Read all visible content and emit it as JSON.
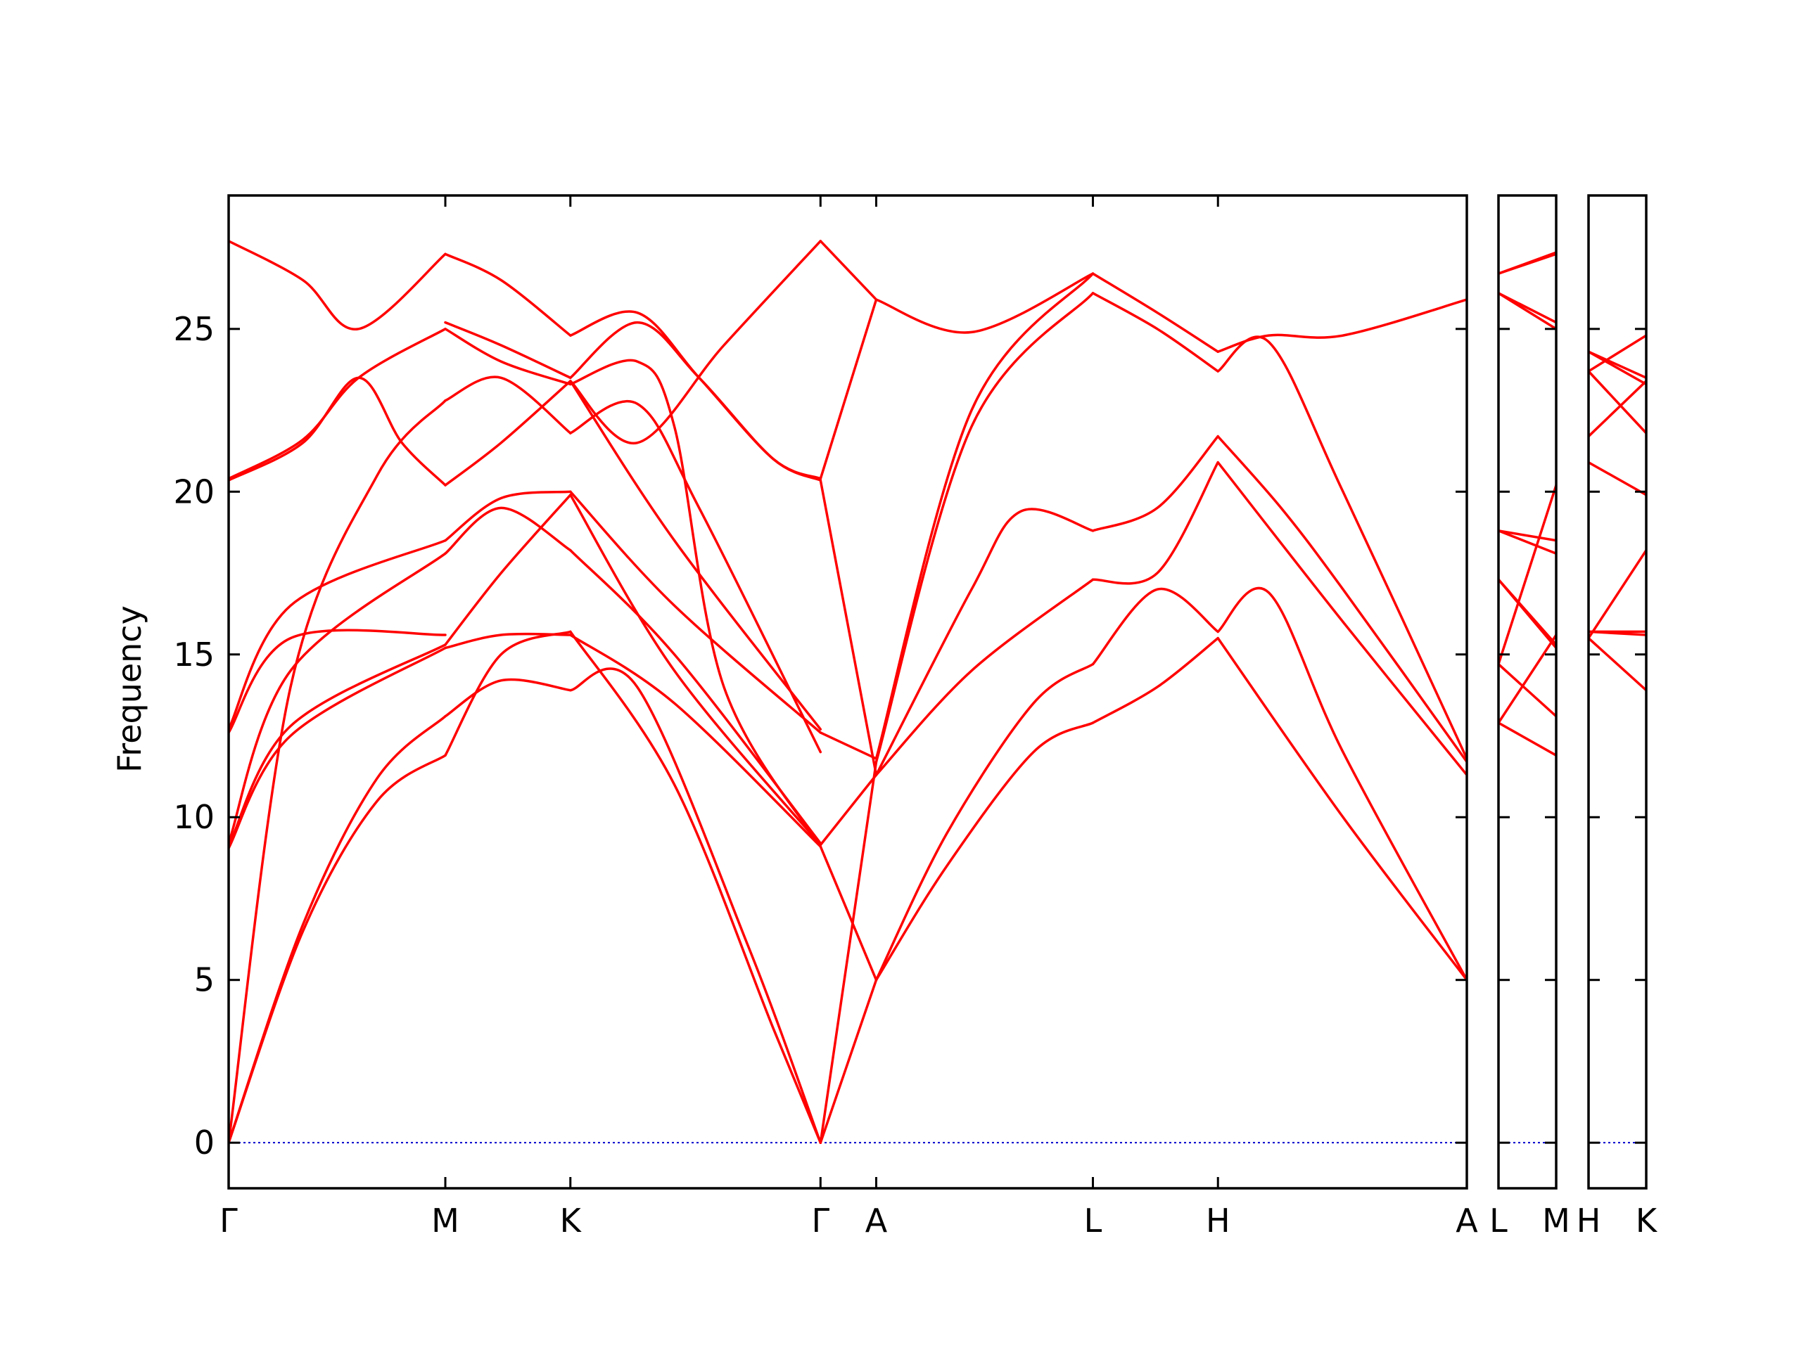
{
  "chart_data": {
    "type": "line",
    "title": "",
    "xlabel": "",
    "ylabel": "Frequency",
    "ylim": [
      -1.4,
      29.1
    ],
    "yticks": [
      0,
      5,
      10,
      15,
      20,
      25
    ],
    "grid": false,
    "legend": "none",
    "colors": {
      "band": "#ff0000",
      "zero_line": "#0000cc",
      "frame": "#000000"
    },
    "panels": [
      {
        "name": "main",
        "xlim": [
          0,
          1.0
        ],
        "ticks": [
          {
            "label": "Γ",
            "x": 0.0
          },
          {
            "label": "M",
            "x": 0.175
          },
          {
            "label": "K",
            "x": 0.276
          },
          {
            "label": "Γ",
            "x": 0.478
          },
          {
            "label": "A",
            "x": 0.523
          },
          {
            "label": "L",
            "x": 0.698
          },
          {
            "label": "H",
            "x": 0.799
          },
          {
            "label": "A",
            "x": 1.0
          }
        ],
        "bands": [
          {
            "x": [
              0,
              0.06,
              0.12,
              0.175
            ],
            "y": [
              0,
              6.5,
              10.5,
              11.9
            ]
          },
          {
            "x": [
              0,
              0.06,
              0.12,
              0.175
            ],
            "y": [
              0,
              6.7,
              11.2,
              13.1
            ]
          },
          {
            "x": [
              0,
              0.05,
              0.12,
              0.175
            ],
            "y": [
              0,
              14.0,
              20.5,
              22.8
            ]
          },
          {
            "x": [
              0,
              0.05,
              0.175
            ],
            "y": [
              9.05,
              12.5,
              15.2
            ]
          },
          {
            "x": [
              0,
              0.05,
              0.175
            ],
            "y": [
              9.1,
              12.8,
              15.3
            ]
          },
          {
            "x": [
              0,
              0.05,
              0.175
            ],
            "y": [
              9.2,
              14.5,
              18.1
            ]
          },
          {
            "x": [
              0,
              0.05,
              0.175
            ],
            "y": [
              12.6,
              15.5,
              15.6
            ]
          },
          {
            "x": [
              0,
              0.05,
              0.175
            ],
            "y": [
              12.7,
              16.5,
              18.5
            ]
          },
          {
            "x": [
              0,
              0.06,
              0.105,
              0.14,
              0.175
            ],
            "y": [
              20.35,
              21.5,
              23.5,
              21.5,
              20.2
            ]
          },
          {
            "x": [
              0,
              0.06,
              0.105,
              0.175
            ],
            "y": [
              20.4,
              21.6,
              23.5,
              25.0
            ]
          },
          {
            "x": [
              0,
              0.06,
              0.105,
              0.175
            ],
            "y": [
              27.7,
              26.5,
              25.0,
              27.3
            ]
          },
          {
            "x": [
              0.175,
              0.22,
              0.276
            ],
            "y": [
              11.9,
              15.0,
              15.7
            ]
          },
          {
            "x": [
              0.175,
              0.22,
              0.276
            ],
            "y": [
              13.1,
              14.2,
              13.9
            ]
          },
          {
            "x": [
              0.175,
              0.22,
              0.276
            ],
            "y": [
              15.2,
              15.6,
              15.6
            ]
          },
          {
            "x": [
              0.175,
              0.22,
              0.276
            ],
            "y": [
              15.3,
              17.5,
              19.9
            ]
          },
          {
            "x": [
              0.175,
              0.22,
              0.276
            ],
            "y": [
              18.1,
              19.5,
              18.2
            ]
          },
          {
            "x": [
              0.175,
              0.22,
              0.276
            ],
            "y": [
              18.5,
              19.8,
              20.0
            ]
          },
          {
            "x": [
              0.175,
              0.22,
              0.276
            ],
            "y": [
              20.2,
              21.5,
              23.4
            ]
          },
          {
            "x": [
              0.175,
              0.22,
              0.276
            ],
            "y": [
              22.8,
              23.5,
              21.8
            ]
          },
          {
            "x": [
              0.175,
              0.22,
              0.276
            ],
            "y": [
              25.0,
              24.0,
              23.3
            ]
          },
          {
            "x": [
              0.175,
              0.22,
              0.276
            ],
            "y": [
              25.2,
              24.5,
              23.5
            ]
          },
          {
            "x": [
              0.175,
              0.22,
              0.276
            ],
            "y": [
              27.3,
              26.5,
              24.8
            ]
          },
          {
            "x": [
              0.276,
              0.36,
              0.44,
              0.478
            ],
            "y": [
              15.7,
              11.0,
              3.5,
              0
            ]
          },
          {
            "x": [
              0.276,
              0.33,
              0.42,
              0.478
            ],
            "y": [
              13.9,
              14.0,
              6.0,
              0
            ]
          },
          {
            "x": [
              0.276,
              0.36,
              0.478
            ],
            "y": [
              15.6,
              13.5,
              9.1
            ]
          },
          {
            "x": [
              0.276,
              0.36,
              0.478
            ],
            "y": [
              19.9,
              14.5,
              9.15
            ]
          },
          {
            "x": [
              0.276,
              0.36,
              0.478
            ],
            "y": [
              18.2,
              15.0,
              9.2
            ]
          },
          {
            "x": [
              0.276,
              0.36,
              0.478
            ],
            "y": [
              20.0,
              16.5,
              12.6
            ]
          },
          {
            "x": [
              0.276,
              0.36,
              0.478
            ],
            "y": [
              23.4,
              18.5,
              12.7
            ]
          },
          {
            "x": [
              0.276,
              0.33,
              0.38,
              0.478
            ],
            "y": [
              21.8,
              22.7,
              19.5,
              12.0
            ]
          },
          {
            "x": [
              0.276,
              0.33,
              0.36,
              0.4,
              0.478
            ],
            "y": [
              23.3,
              24.0,
              22.0,
              14.0,
              9.1
            ]
          },
          {
            "x": [
              0.276,
              0.33,
              0.38,
              0.44,
              0.478
            ],
            "y": [
              23.5,
              25.2,
              23.5,
              21.0,
              20.35
            ]
          },
          {
            "x": [
              0.276,
              0.33,
              0.38,
              0.44,
              0.478
            ],
            "y": [
              24.8,
              25.5,
              23.5,
              21.0,
              20.4
            ]
          },
          {
            "x": [
              0.276,
              0.33,
              0.4,
              0.478
            ],
            "y": [
              23.4,
              21.5,
              24.5,
              27.7
            ]
          },
          {
            "x": [
              0.478,
              0.523
            ],
            "y": [
              0,
              5.0
            ]
          },
          {
            "x": [
              0.478,
              0.523
            ],
            "y": [
              0,
              11.7
            ]
          },
          {
            "x": [
              0.478,
              0.523
            ],
            "y": [
              9.1,
              5.0
            ]
          },
          {
            "x": [
              0.478,
              0.523
            ],
            "y": [
              9.15,
              11.3
            ]
          },
          {
            "x": [
              0.478,
              0.523
            ],
            "y": [
              12.6,
              11.8
            ]
          },
          {
            "x": [
              0.478,
              0.523
            ],
            "y": [
              20.35,
              11.3
            ]
          },
          {
            "x": [
              0.478,
              0.523
            ],
            "y": [
              20.4,
              25.9
            ]
          },
          {
            "x": [
              0.478,
              0.523
            ],
            "y": [
              27.7,
              25.9
            ]
          },
          {
            "x": [
              0.523,
              0.58,
              0.65,
              0.698
            ],
            "y": [
              5.0,
              8.5,
              12.0,
              12.9
            ]
          },
          {
            "x": [
              0.523,
              0.58,
              0.65,
              0.698
            ],
            "y": [
              5.0,
              9.5,
              13.5,
              14.7
            ]
          },
          {
            "x": [
              0.523,
              0.6,
              0.698
            ],
            "y": [
              11.3,
              14.5,
              17.3
            ]
          },
          {
            "x": [
              0.523,
              0.6,
              0.64,
              0.698
            ],
            "y": [
              11.3,
              17.0,
              19.4,
              18.8
            ]
          },
          {
            "x": [
              0.523,
              0.6,
              0.698
            ],
            "y": [
              11.7,
              22.0,
              26.1
            ]
          },
          {
            "x": [
              0.523,
              0.6,
              0.698
            ],
            "y": [
              11.8,
              22.5,
              26.7
            ]
          },
          {
            "x": [
              0.523,
              0.6,
              0.698
            ],
            "y": [
              25.9,
              24.9,
              26.7
            ]
          },
          {
            "x": [
              0.698,
              0.75,
              0.799
            ],
            "y": [
              12.9,
              14.0,
              15.5
            ]
          },
          {
            "x": [
              0.698,
              0.75,
              0.799
            ],
            "y": [
              14.7,
              17.0,
              15.7
            ]
          },
          {
            "x": [
              0.698,
              0.75,
              0.799
            ],
            "y": [
              17.3,
              17.5,
              20.9
            ]
          },
          {
            "x": [
              0.698,
              0.75,
              0.799
            ],
            "y": [
              18.8,
              19.5,
              21.7
            ]
          },
          {
            "x": [
              0.698,
              0.75,
              0.799
            ],
            "y": [
              26.1,
              25.0,
              23.7
            ]
          },
          {
            "x": [
              0.698,
              0.75,
              0.799
            ],
            "y": [
              26.7,
              25.5,
              24.3
            ]
          },
          {
            "x": [
              0.799,
              0.9,
              1.0
            ],
            "y": [
              15.5,
              10.0,
              5.0
            ]
          },
          {
            "x": [
              0.799,
              0.84,
              0.9,
              1.0
            ],
            "y": [
              15.7,
              16.9,
              12.0,
              5.0
            ]
          },
          {
            "x": [
              0.799,
              0.9,
              1.0
            ],
            "y": [
              20.9,
              16.0,
              11.3
            ]
          },
          {
            "x": [
              0.799,
              0.85,
              0.9,
              1.0
            ],
            "y": [
              21.7,
              19.5,
              17.0,
              11.7
            ]
          },
          {
            "x": [
              0.799,
              0.84,
              0.9,
              1.0
            ],
            "y": [
              23.7,
              24.6,
              20.0,
              11.8
            ]
          },
          {
            "x": [
              0.799,
              0.84,
              0.9,
              1.0
            ],
            "y": [
              24.3,
              24.8,
              24.8,
              25.9
            ]
          }
        ]
      },
      {
        "name": "L-M",
        "xlim": [
          0,
          1.0
        ],
        "ticks": [
          {
            "label": "L",
            "x": 0.0
          },
          {
            "label": "M",
            "x": 1.0
          }
        ],
        "bands": [
          {
            "x": [
              0,
              1.0
            ],
            "y": [
              12.9,
              11.9
            ]
          },
          {
            "x": [
              0,
              1.0
            ],
            "y": [
              14.7,
              13.1
            ]
          },
          {
            "x": [
              0,
              1.0
            ],
            "y": [
              17.3,
              15.2
            ]
          },
          {
            "x": [
              0,
              1.0
            ],
            "y": [
              17.3,
              15.3
            ]
          },
          {
            "x": [
              0,
              1.0
            ],
            "y": [
              18.8,
              18.1
            ]
          },
          {
            "x": [
              0,
              1.0
            ],
            "y": [
              18.8,
              18.5
            ]
          },
          {
            "x": [
              0,
              1.0
            ],
            "y": [
              14.7,
              20.2
            ]
          },
          {
            "x": [
              0,
              1.0
            ],
            "y": [
              12.9,
              15.6
            ]
          },
          {
            "x": [
              0,
              1.0
            ],
            "y": [
              26.1,
              25.0
            ]
          },
          {
            "x": [
              0,
              1.0
            ],
            "y": [
              26.1,
              25.2
            ]
          },
          {
            "x": [
              0,
              1.0
            ],
            "y": [
              26.7,
              27.3
            ]
          },
          {
            "x": [
              0,
              1.0
            ],
            "y": [
              26.7,
              27.35
            ]
          }
        ]
      },
      {
        "name": "H-K",
        "xlim": [
          0,
          1.0
        ],
        "ticks": [
          {
            "label": "H",
            "x": 0.0
          },
          {
            "label": "K",
            "x": 1.0
          }
        ],
        "bands": [
          {
            "x": [
              0,
              1.0
            ],
            "y": [
              15.5,
              13.9
            ]
          },
          {
            "x": [
              0,
              1.0
            ],
            "y": [
              15.7,
              15.7
            ]
          },
          {
            "x": [
              0,
              1.0
            ],
            "y": [
              15.5,
              18.2
            ]
          },
          {
            "x": [
              0,
              1.0
            ],
            "y": [
              15.7,
              15.6
            ]
          },
          {
            "x": [
              0,
              1.0
            ],
            "y": [
              20.9,
              19.9
            ]
          },
          {
            "x": [
              0,
              1.0
            ],
            "y": [
              21.7,
              23.4
            ]
          },
          {
            "x": [
              0,
              1.0
            ],
            "y": [
              23.7,
              21.8
            ]
          },
          {
            "x": [
              0,
              1.0
            ],
            "y": [
              24.3,
              23.5
            ]
          },
          {
            "x": [
              0,
              1.0
            ],
            "y": [
              23.7,
              24.8
            ]
          },
          {
            "x": [
              0,
              1.0
            ],
            "y": [
              24.3,
              23.3
            ]
          }
        ]
      }
    ]
  }
}
